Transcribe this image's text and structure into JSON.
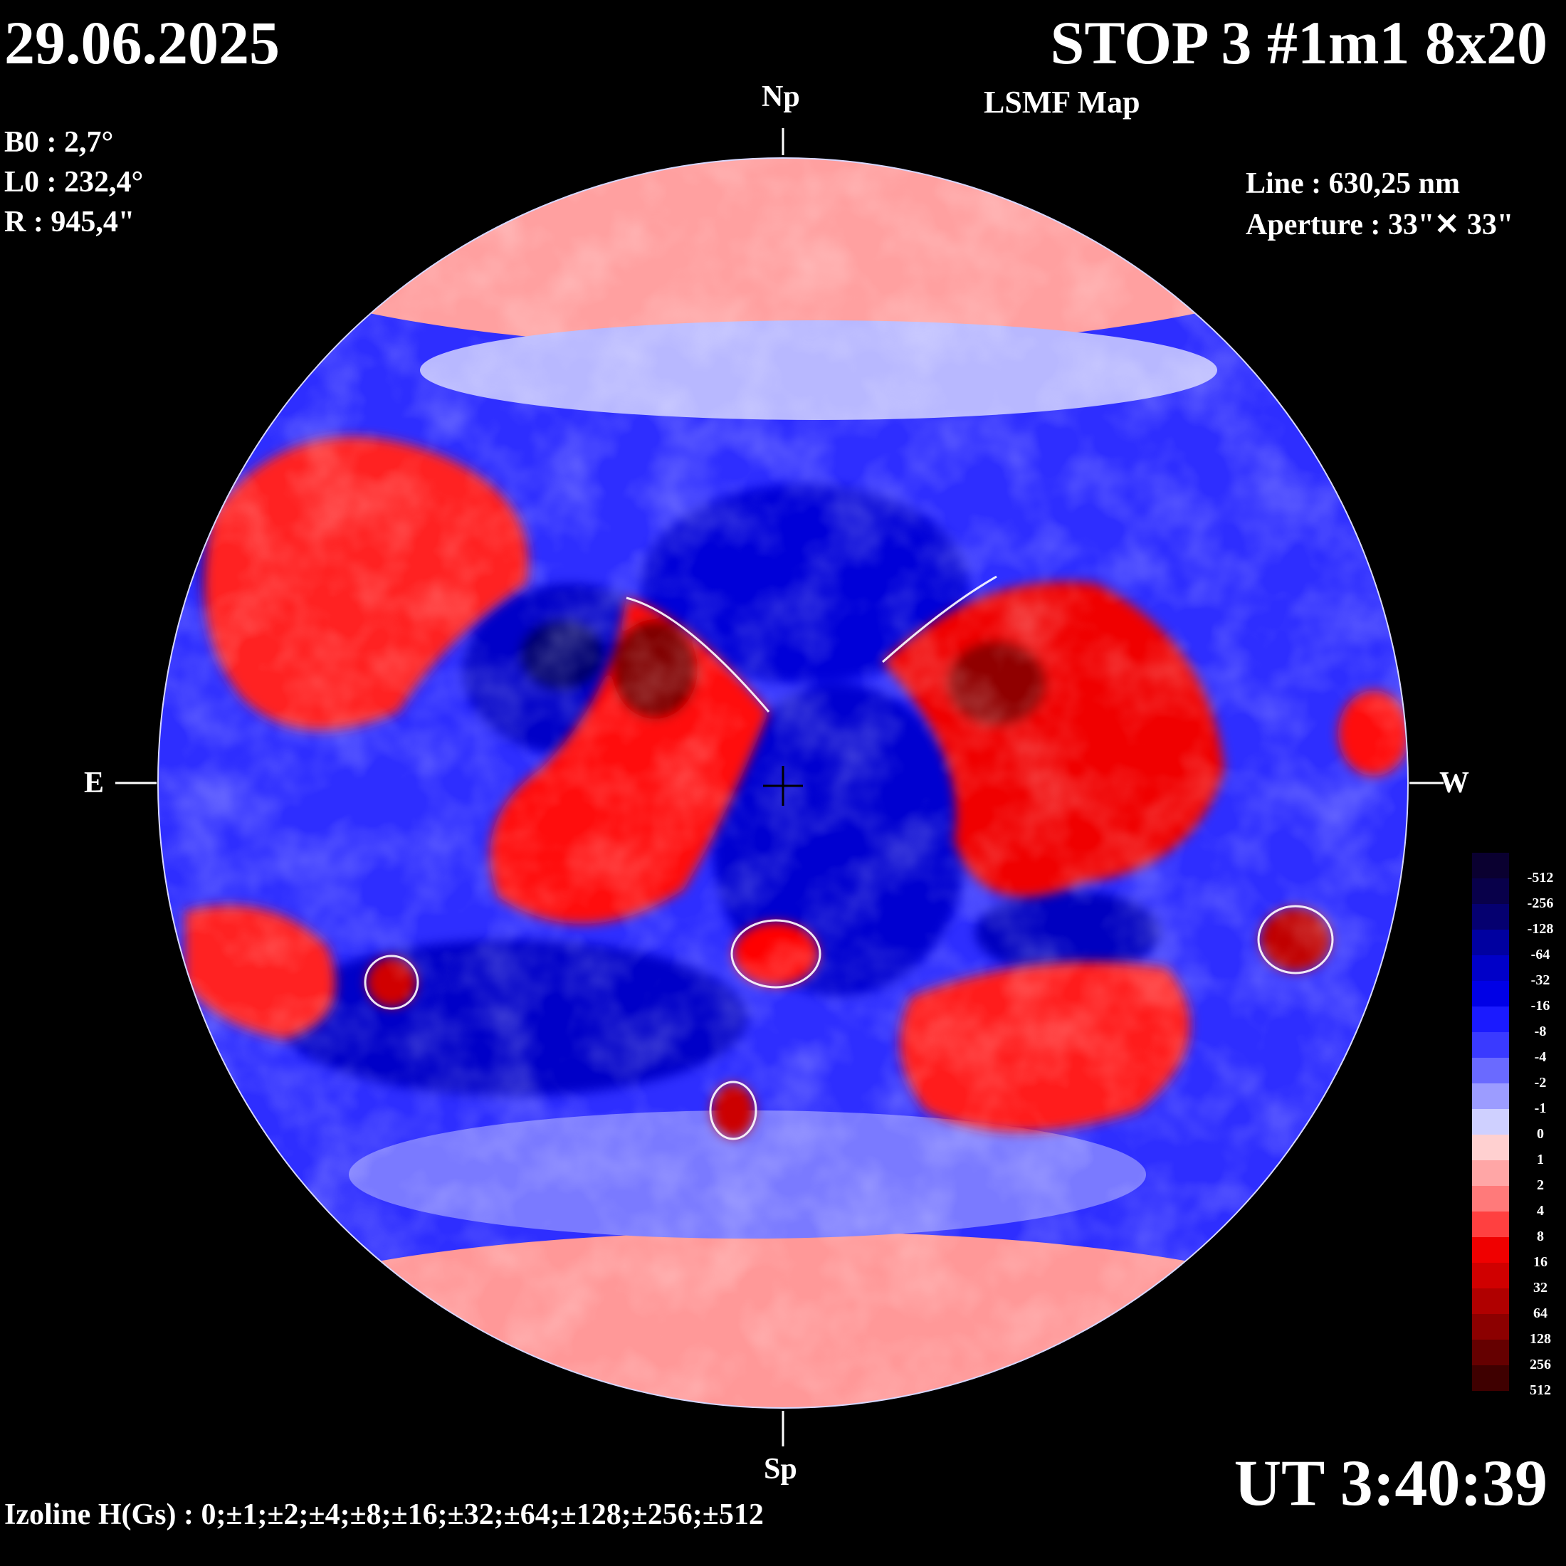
{
  "header": {
    "date": "29.06.2025",
    "title": "STOP 3 #1m1 8x20",
    "subtitle": "LSMF  Map"
  },
  "params": {
    "b0": "B0 : 2,7°",
    "l0": "L0 : 232,4°",
    "radius": "R  : 945,4\""
  },
  "instrument": {
    "line": "Line :  630,25 nm",
    "aperture": "Aperture : 33\"✕ 33\""
  },
  "directions": {
    "north": "Np",
    "south": "Sp",
    "east": "E",
    "west": "W"
  },
  "time": "UT 3:40:39",
  "isolines": "Izoline H(Gs) : 0;±1;±2;±4;±8;±16;±32;±64;±128;±256;±512",
  "colorbar": {
    "labels": [
      "-512",
      "-256",
      "-128",
      "-64",
      "-32",
      "-16",
      "-8",
      "-4",
      "-2",
      "-1",
      "0",
      "1",
      "2",
      "4",
      "8",
      "16",
      "32",
      "64",
      "128",
      "256",
      "512"
    ],
    "colors": [
      "#0a0030",
      "#08004a",
      "#050070",
      "#0000a0",
      "#0000c8",
      "#0000e6",
      "#1a1aff",
      "#3a3aff",
      "#6a6aff",
      "#9c9cff",
      "#cfd0ff",
      "#ffd0d0",
      "#ffa6a6",
      "#ff7a7a",
      "#ff4040",
      "#f00000",
      "#d00000",
      "#b00000",
      "#8c0000",
      "#650000",
      "#3f0000"
    ]
  },
  "map_colors": {
    "background_blue": "#2a2aff",
    "positive_core": "#c00000",
    "negative_core": "#0000b0",
    "zero_contour": "#ffffff"
  }
}
